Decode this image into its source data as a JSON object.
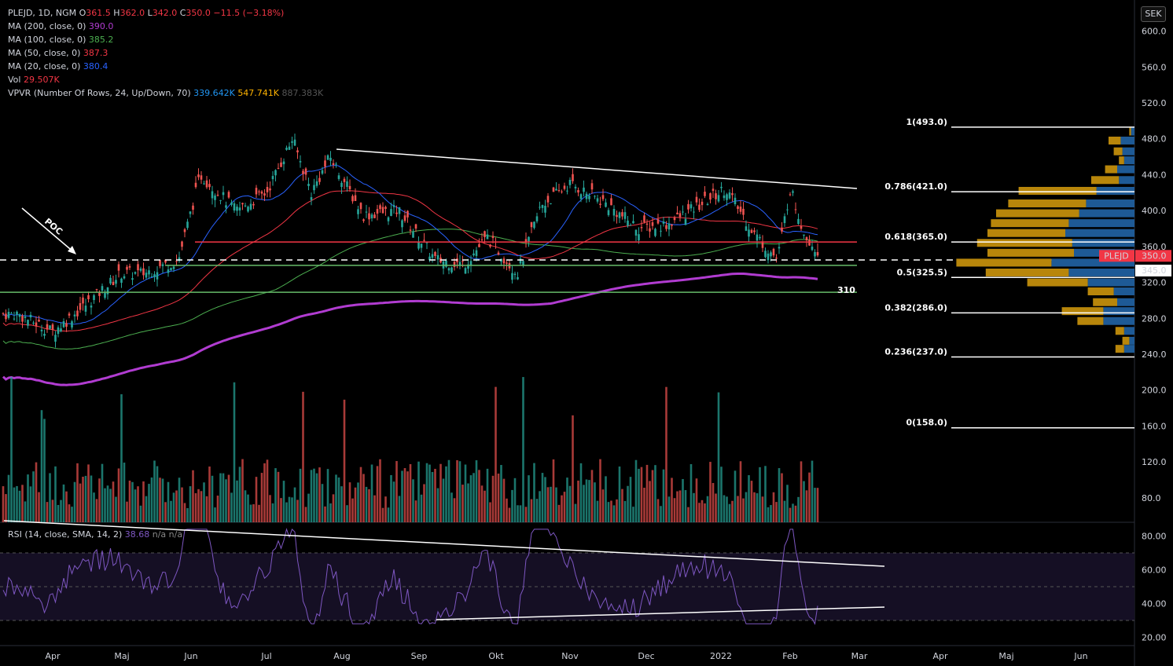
{
  "header": {
    "symbol": "PLEJD, 1D, NGM",
    "ohlc": [
      {
        "k": "O",
        "v": "361.5"
      },
      {
        "k": "H",
        "v": "362.0"
      },
      {
        "k": "L",
        "v": "342.0"
      },
      {
        "k": "C",
        "v": "350.0"
      }
    ],
    "change": "−11.5 (−3.18%)",
    "ma_rows": [
      {
        "label": "MA (200, close, 0)",
        "value": "390.0",
        "color": "#b13cd1"
      },
      {
        "label": "MA (100, close, 0)",
        "value": "385.2",
        "color": "#4caf50"
      },
      {
        "label": "MA (50, close, 0)",
        "value": "387.3",
        "color": "#f23645"
      },
      {
        "label": "MA (20, close, 0)",
        "value": "380.4",
        "color": "#2962ff"
      }
    ],
    "vol_label": "Vol",
    "vol_value": "29.507K",
    "vpvr_label": "VPVR (Number Of Rows, 24, Up/Down, 70)",
    "vpvr_up": "339.642K",
    "vpvr_down": "547.741K",
    "vpvr_total": "887.383K"
  },
  "rsi_legend": {
    "label": "RSI (14, close, SMA, 14, 2)",
    "value": "38.68",
    "na1": "n/a",
    "na2": "n/a"
  },
  "currency": "SEK",
  "price_axis": [
    "600.0",
    "560.0",
    "520.0",
    "480.0",
    "440.0",
    "400.0",
    "360.0",
    "320.0",
    "280.0",
    "240.0",
    "200.0",
    "160.0",
    "120.0",
    "80.0"
  ],
  "rsi_axis": [
    "80.00",
    "60.00",
    "40.00",
    "20.00"
  ],
  "months": [
    "Apr",
    "Maj",
    "Jun",
    "Jul",
    "Aug",
    "Sep",
    "Okt",
    "Nov",
    "Dec",
    "2022",
    "Feb",
    "Mar",
    "Apr",
    "Maj",
    "Jun"
  ],
  "fib_levels": [
    {
      "label": "1(493.0)",
      "price": 493.0
    },
    {
      "label": "0.786(421.0)",
      "price": 421.0
    },
    {
      "label": "0.618(365.0)",
      "price": 365.0
    },
    {
      "label": "0.5(325.5)",
      "price": 325.5
    },
    {
      "label": "0.382(286.0)",
      "price": 286.0
    },
    {
      "label": "0.236(237.0)",
      "price": 237.0
    },
    {
      "label": "0(158.0)",
      "price": 158.0
    }
  ],
  "annotations": {
    "poc": "POC",
    "support_label": "310",
    "price_tag_symbol": "PLEJD",
    "price_tag_value": "350.0",
    "support_tag": "345.0"
  },
  "colors": {
    "up": "#26a69a",
    "down": "#ef5350",
    "ma200": "#b13cd1",
    "ma100": "#4caf50",
    "ma50": "#f23645",
    "ma20": "#2962ff",
    "rsi": "#7e57c2",
    "vpvr_up": "#1e5a96",
    "vpvr_down": "#b8860b"
  },
  "chart_data": {
    "type": "candlestick",
    "symbol": "PLEJD",
    "interval": "1D",
    "exchange": "NGM",
    "last_close": 350.0,
    "ma_values": {
      "ma200": 390.0,
      "ma100": 385.2,
      "ma50": 387.3,
      "ma20": 380.4
    },
    "close_path": [
      [
        "Mar-15",
        285
      ],
      [
        "Apr-01",
        265
      ],
      [
        "Apr-15",
        295
      ],
      [
        "Apr-30",
        330
      ],
      [
        "May-10",
        330
      ],
      [
        "May-25",
        345
      ],
      [
        "Jun-05",
        440
      ],
      [
        "Jun-20",
        400
      ],
      [
        "Jul-01",
        420
      ],
      [
        "Jul-12",
        480
      ],
      [
        "Jul-20",
        420
      ],
      [
        "Jul-28",
        460
      ],
      [
        "Aug-10",
        395
      ],
      [
        "Aug-25",
        400
      ],
      [
        "Sep-08",
        345
      ],
      [
        "Sep-20",
        340
      ],
      [
        "Sep-30",
        370
      ],
      [
        "Okt-10",
        330
      ],
      [
        "Okt-20",
        405
      ],
      [
        "Nov-01",
        430
      ],
      [
        "Nov-15",
        410
      ],
      [
        "Nov-30",
        380
      ],
      [
        "Dec-10",
        385
      ],
      [
        "Dec-20",
        400
      ],
      [
        "Jan-03",
        425
      ],
      [
        "Jan-15",
        375
      ],
      [
        "Jan-25",
        345
      ],
      [
        "Feb-01",
        425
      ],
      [
        "Feb-07",
        375
      ],
      [
        "Feb-14",
        350
      ]
    ],
    "horizontal_levels": [
      365,
      345,
      310
    ],
    "rsi_ylim": [
      20,
      85
    ],
    "rsi_bands": [
      70,
      50,
      30
    ]
  }
}
